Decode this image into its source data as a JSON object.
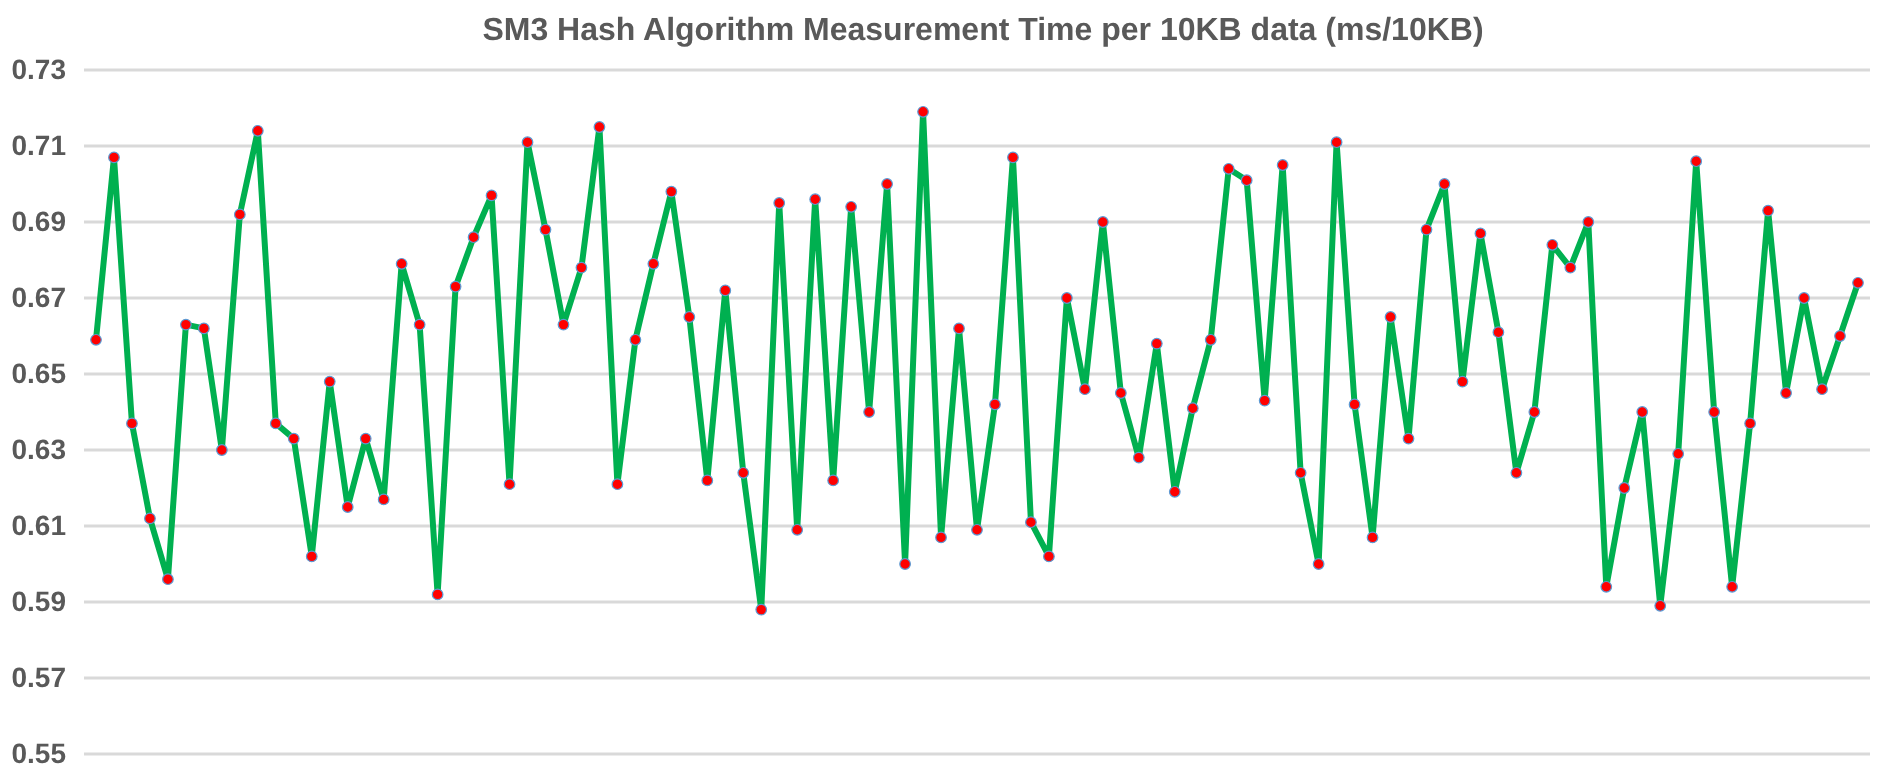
{
  "chart_data": {
    "type": "line",
    "title": "SM3 Hash Algorithm Measurement Time per 10KB data (ms/10KB)",
    "categories": [
      null,
      null,
      null,
      null,
      null,
      null,
      null,
      null,
      null,
      null,
      null,
      null,
      null,
      null,
      null,
      null,
      null,
      null,
      null,
      null,
      null,
      null,
      null,
      null,
      null,
      null,
      null,
      null,
      null,
      null,
      null,
      null,
      null,
      null,
      null,
      null,
      null,
      null,
      null,
      null,
      null,
      null,
      null,
      null,
      null,
      null,
      null,
      null,
      null,
      null,
      null,
      null,
      null,
      null,
      null,
      null,
      null,
      null,
      null,
      null,
      null,
      null,
      null,
      null,
      null,
      null,
      null,
      null,
      null,
      null,
      null,
      null,
      null,
      null,
      null,
      null,
      null,
      null,
      null,
      null,
      null,
      null,
      null,
      null,
      null,
      null,
      null,
      null,
      null,
      null,
      null,
      null,
      null,
      null,
      null,
      null,
      null,
      null,
      null
    ],
    "series": [
      {
        "color": "#00b050",
        "values": [
          0.659,
          0.707,
          0.637,
          0.612,
          0.596,
          0.663,
          0.662,
          0.63,
          0.692,
          0.714,
          0.637,
          0.633,
          0.602,
          0.648,
          0.615,
          0.633,
          0.617,
          0.679,
          0.663,
          0.592,
          0.673,
          0.686,
          0.697,
          0.621,
          0.711,
          0.688,
          0.663,
          0.678,
          0.715,
          0.621,
          0.659,
          0.679,
          0.698,
          0.665,
          0.622,
          0.672,
          0.624,
          0.588,
          0.695,
          0.609,
          0.696,
          0.622,
          0.694,
          0.64,
          0.7,
          0.6,
          0.719,
          0.607,
          0.662,
          0.609,
          0.642,
          0.707,
          0.611,
          0.602,
          0.67,
          0.646,
          0.69,
          0.645,
          0.628,
          0.658,
          0.619,
          0.641,
          0.659,
          0.704,
          0.701,
          0.643,
          0.705,
          0.624,
          0.6,
          0.711,
          0.642,
          0.607,
          0.665,
          0.633,
          0.688,
          0.7,
          0.648,
          0.687,
          0.661,
          0.624,
          0.64,
          0.684,
          0.678,
          0.69,
          0.594,
          0.62,
          0.64,
          0.589,
          0.629,
          0.706,
          0.64,
          0.594,
          0.637,
          0.693,
          0.645,
          0.67,
          0.646,
          0.66,
          0.674
        ]
      }
    ],
    "ylim": [
      0.55,
      0.73
    ],
    "yticks": [
      0.55,
      0.57,
      0.59,
      0.61,
      0.63,
      0.65,
      0.67,
      0.69,
      0.71,
      0.73
    ],
    "grid": "y",
    "marker": "circle",
    "line_style": "solid",
    "tick_labels": "y"
  }
}
